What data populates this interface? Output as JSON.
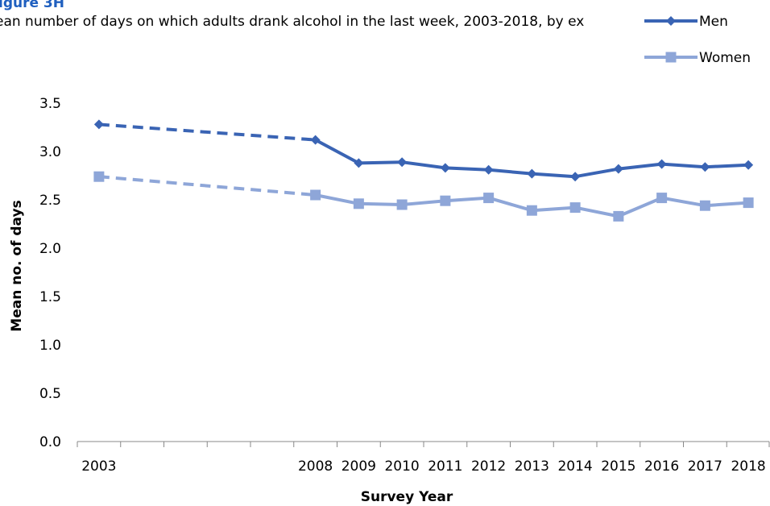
{
  "figure_label": "igure 3H",
  "figure_title": "ean number of days on which adults drank alcohol in the last week, 2003-2018, by ex",
  "chart_data": {
    "type": "line",
    "categories": [
      "2003",
      "2008",
      "2009",
      "2010",
      "2011",
      "2012",
      "2013",
      "2014",
      "2015",
      "2016",
      "2017",
      "2018"
    ],
    "series": [
      {
        "name": "Men",
        "color": "#3a64b4",
        "marker": "diamond",
        "values": [
          3.28,
          3.12,
          2.88,
          2.89,
          2.83,
          2.81,
          2.77,
          2.74,
          2.82,
          2.87,
          2.84,
          2.86
        ]
      },
      {
        "name": "Women",
        "color": "#8ea6d8",
        "marker": "square",
        "values": [
          2.74,
          2.55,
          2.46,
          2.45,
          2.49,
          2.52,
          2.39,
          2.42,
          2.33,
          2.52,
          2.44,
          2.47
        ]
      }
    ],
    "dashed_segment": "2003-2008",
    "yticks": [
      "0.0",
      "0.5",
      "1.0",
      "1.5",
      "2.0",
      "2.5",
      "3.0",
      "3.5"
    ],
    "ylim": [
      0,
      3.5
    ],
    "xlabel": "Survey Year",
    "ylabel": "Mean no. of days",
    "legend_position": "top-right"
  }
}
